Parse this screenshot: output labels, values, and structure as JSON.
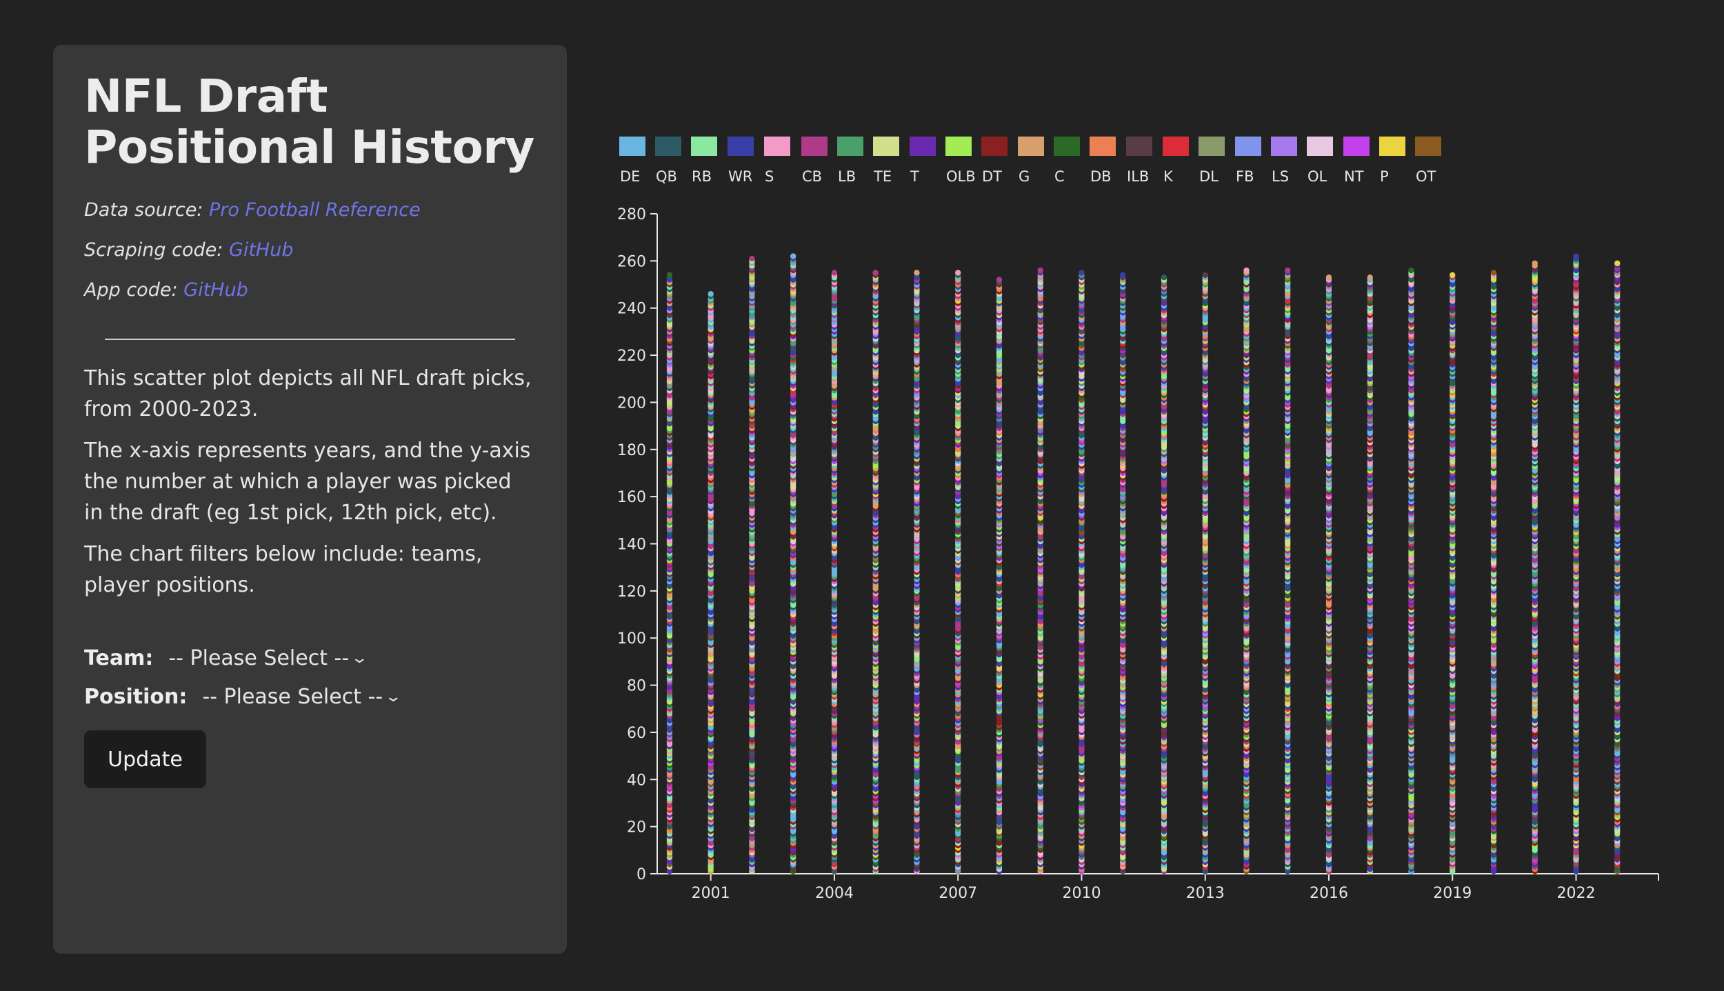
{
  "sidebar": {
    "title": "NFL Draft Positional History",
    "data_source_label": "Data source:",
    "data_source_link": "Pro Football Reference",
    "scraping_label": "Scraping code:",
    "scraping_link": "GitHub",
    "app_label": "App code:",
    "app_link": "GitHub",
    "description": [
      "This scatter plot depicts all NFL draft picks, from 2000-2023.",
      "The x-axis represents years, and the y-axis the number at which a player was picked in the draft (eg 1st pick, 12th pick, etc).",
      "The chart filters below include: teams, player positions."
    ],
    "filters": {
      "team_label": "Team:",
      "team_value": "-- Please Select --",
      "position_label": "Position:",
      "position_value": "-- Please Select --"
    },
    "update_label": "Update",
    "chevron_icon": "chevron-down-icon"
  },
  "chart_data": {
    "type": "scatter",
    "x_range": [
      2000,
      2023
    ],
    "xlim": [
      1999.7,
      2024
    ],
    "ylim": [
      0,
      280
    ],
    "x_ticks": [
      "2001",
      "2004",
      "2007",
      "2010",
      "2013",
      "2016",
      "2019",
      "2022"
    ],
    "y_ticks": [
      "0",
      "20",
      "40",
      "60",
      "80",
      "100",
      "120",
      "140",
      "160",
      "180",
      "200",
      "220",
      "240",
      "260",
      "280"
    ],
    "max_pick_by_year": {
      "2000": 254,
      "2001": 246,
      "2002": 261,
      "2003": 262,
      "2004": 255,
      "2005": 255,
      "2006": 255,
      "2007": 255,
      "2008": 252,
      "2009": 256,
      "2010": 255,
      "2011": 254,
      "2012": 253,
      "2013": 254,
      "2014": 256,
      "2015": 256,
      "2016": 253,
      "2017": 253,
      "2018": 256,
      "2019": 254,
      "2020": 255,
      "2021": 259,
      "2022": 262,
      "2023": 259
    },
    "legend": [
      {
        "label": "DE",
        "color": "#6bb5e3"
      },
      {
        "label": "QB",
        "color": "#2c5a66"
      },
      {
        "label": "RB",
        "color": "#8be8a2"
      },
      {
        "label": "WR",
        "color": "#3a3fa8"
      },
      {
        "label": "S",
        "color": "#f29ac8"
      },
      {
        "label": "CB",
        "color": "#b03a8a"
      },
      {
        "label": "LB",
        "color": "#4aa06a"
      },
      {
        "label": "TE",
        "color": "#d0e08c"
      },
      {
        "label": "T",
        "color": "#6a2ab0"
      },
      {
        "label": "OLB",
        "color": "#a4ec54"
      },
      {
        "label": "DT",
        "color": "#8a2020"
      },
      {
        "label": "G",
        "color": "#d8a06c"
      },
      {
        "label": "C",
        "color": "#2a6a26"
      },
      {
        "label": "DB",
        "color": "#ec8054"
      },
      {
        "label": "ILB",
        "color": "#5a3c48"
      },
      {
        "label": "K",
        "color": "#dc2c38"
      },
      {
        "label": "DL",
        "color": "#8a9a6a"
      },
      {
        "label": "FB",
        "color": "#8094ec"
      },
      {
        "label": "LS",
        "color": "#a67aec"
      },
      {
        "label": "OL",
        "color": "#e8c8e0"
      },
      {
        "label": "NT",
        "color": "#c440ec"
      },
      {
        "label": "P",
        "color": "#ecd440"
      },
      {
        "label": "OT",
        "color": "#8a5a20"
      }
    ]
  }
}
